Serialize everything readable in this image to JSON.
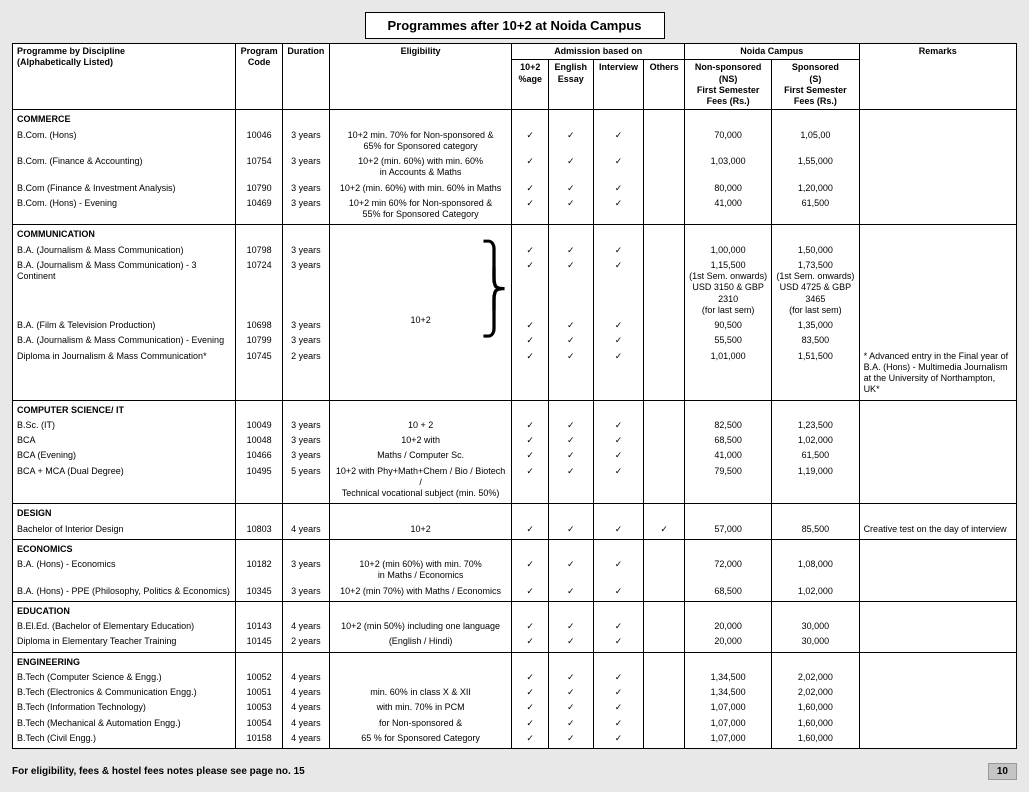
{
  "title": "Programmes after 10+2 at Noida Campus",
  "headers": {
    "prog": "Programme by Discipline\n(Alphabetically Listed)",
    "code": "Program\nCode",
    "dur": "Duration",
    "elig": "Eligibility",
    "adm": "Admission based on",
    "adm1": "10+2\n%age",
    "adm2": "English\nEssay",
    "adm3": "Interview",
    "adm4": "Others",
    "campus": "Noida Campus",
    "ns": "Non-sponsored\n(NS)\nFirst Semester\nFees (Rs.)",
    "s": "Sponsored\n(S)\nFirst Semester\nFees (Rs.)",
    "rem": "Remarks"
  },
  "tick": "✓",
  "sections": [
    {
      "name": "COMMERCE",
      "rows": [
        {
          "p": "B.Com. (Hons)",
          "c": "10046",
          "d": "3 years",
          "e": "10+2 min. 70% for Non-sponsored &\n65% for Sponsored category",
          "a": [
            1,
            1,
            1,
            0
          ],
          "ns": "70,000",
          "s": "1,05,00",
          "r": ""
        },
        {
          "p": "B.Com. (Finance & Accounting)",
          "c": "10754",
          "d": "3 years",
          "e": "10+2 (min. 60%) with min. 60%\nin Accounts & Maths",
          "a": [
            1,
            1,
            1,
            0
          ],
          "ns": "1,03,000",
          "s": "1,55,000",
          "r": ""
        },
        {
          "p": "B.Com (Finance & Investment Analysis)",
          "c": "10790",
          "d": "3 years",
          "e": "10+2 (min. 60%) with min. 60% in Maths",
          "a": [
            1,
            1,
            1,
            0
          ],
          "ns": "80,000",
          "s": "1,20,000",
          "r": ""
        },
        {
          "p": "B.Com. (Hons) - Evening",
          "c": "10469",
          "d": "3 years",
          "e": "10+2 min 60% for Non-sponsored &\n55% for Sponsored Category",
          "a": [
            1,
            1,
            1,
            0
          ],
          "ns": "41,000",
          "s": "61,500",
          "r": ""
        }
      ]
    },
    {
      "name": "COMMUNICATION",
      "bracedElig": "10+2",
      "rows": [
        {
          "p": "B.A. (Journalism & Mass Communication)",
          "c": "10798",
          "d": "3 years",
          "e": "",
          "a": [
            1,
            1,
            1,
            0
          ],
          "ns": "1,00,000",
          "s": "1,50,000",
          "r": ""
        },
        {
          "p": "B.A. (Journalism & Mass Communication) - 3 Continent",
          "c": "10724",
          "d": "3 years",
          "e": "",
          "a": [
            1,
            1,
            1,
            0
          ],
          "ns": "1,15,500\n(1st Sem. onwards)\nUSD 3150 & GBP 2310\n(for last sem)",
          "s": "1,73,500\n(1st Sem. onwards)\nUSD 4725 & GBP 3465\n(for last sem)",
          "r": ""
        },
        {
          "p": "B.A. (Film & Television Production)",
          "c": "10698",
          "d": "3 years",
          "e": "",
          "a": [
            1,
            1,
            1,
            0
          ],
          "ns": "90,500",
          "s": "1,35,000",
          "r": ""
        },
        {
          "p": "B.A. (Journalism & Mass Communication) - Evening",
          "c": "10799",
          "d": "3 years",
          "e": "",
          "a": [
            1,
            1,
            1,
            0
          ],
          "ns": "55,500",
          "s": "83,500",
          "r": ""
        },
        {
          "p": "Diploma in Journalism & Mass Communication*",
          "c": "10745",
          "d": "2 years",
          "e": "",
          "a": [
            1,
            1,
            1,
            0
          ],
          "ns": "1,01,000",
          "s": "1,51,500",
          "r": "* Advanced entry in the Final year of B.A. (Hons) - Multimedia Journalism at the University of Northampton, UK*"
        }
      ]
    },
    {
      "name": "COMPUTER SCIENCE/ IT",
      "rows": [
        {
          "p": "B.Sc. (IT)",
          "c": "10049",
          "d": "3 years",
          "e": "10 + 2",
          "a": [
            1,
            1,
            1,
            0
          ],
          "ns": "82,500",
          "s": "1,23,500",
          "r": ""
        },
        {
          "p": "BCA",
          "c": "10048",
          "d": "3 years",
          "e": "10+2 with",
          "a": [
            1,
            1,
            1,
            0
          ],
          "ns": "68,500",
          "s": "1,02,000",
          "r": ""
        },
        {
          "p": "BCA (Evening)",
          "c": "10466",
          "d": "3 years",
          "e": "Maths / Computer Sc.",
          "a": [
            1,
            1,
            1,
            0
          ],
          "ns": "41,000",
          "s": "61,500",
          "r": ""
        },
        {
          "p": "BCA + MCA (Dual Degree)",
          "c": "10495",
          "d": "5 years",
          "e": "10+2 with Phy+Math+Chem / Bio / Biotech /\nTechnical vocational subject (min. 50%)",
          "a": [
            1,
            1,
            1,
            0
          ],
          "ns": "79,500",
          "s": "1,19,000",
          "r": ""
        }
      ]
    },
    {
      "name": "DESIGN",
      "rows": [
        {
          "p": "Bachelor of Interior Design",
          "c": "10803",
          "d": "4 years",
          "e": "10+2",
          "a": [
            1,
            1,
            1,
            1
          ],
          "ns": "57,000",
          "s": "85,500",
          "r": "Creative test on the day of interview"
        }
      ]
    },
    {
      "name": "ECONOMICS",
      "rows": [
        {
          "p": "B.A. (Hons) - Economics",
          "c": "10182",
          "d": "3 years",
          "e": "10+2 (min 60%) with min. 70%\nin Maths / Economics",
          "a": [
            1,
            1,
            1,
            0
          ],
          "ns": "72,000",
          "s": "1,08,000",
          "r": ""
        },
        {
          "p": "B.A. (Hons) - PPE (Philosophy, Politics & Economics)",
          "c": "10345",
          "d": "3 years",
          "e": "10+2 (min 70%) with Maths / Economics",
          "a": [
            1,
            1,
            1,
            0
          ],
          "ns": "68,500",
          "s": "1,02,000",
          "r": ""
        }
      ]
    },
    {
      "name": "EDUCATION",
      "rows": [
        {
          "p": "B.El.Ed. (Bachelor of Elementary Education)",
          "c": "10143",
          "d": "4 years",
          "e": "10+2 (min 50%) including one language",
          "a": [
            1,
            1,
            1,
            0
          ],
          "ns": "20,000",
          "s": "30,000",
          "r": ""
        },
        {
          "p": "Diploma in Elementary Teacher Training",
          "c": "10145",
          "d": "2 years",
          "e": "(English / Hindi)",
          "a": [
            1,
            1,
            1,
            0
          ],
          "ns": "20,000",
          "s": "30,000",
          "r": ""
        }
      ]
    },
    {
      "name": "ENGINEERING",
      "rows": [
        {
          "p": "B.Tech (Computer Science & Engg.)",
          "c": "10052",
          "d": "4 years",
          "e": "",
          "a": [
            1,
            1,
            1,
            0
          ],
          "ns": "1,34,500",
          "s": "2,02,000",
          "r": ""
        },
        {
          "p": "B.Tech (Electronics & Communication Engg.)",
          "c": "10051",
          "d": "4 years",
          "e": "min. 60% in class X & XII",
          "a": [
            1,
            1,
            1,
            0
          ],
          "ns": "1,34,500",
          "s": "2,02,000",
          "r": ""
        },
        {
          "p": "B.Tech (Information Technology)",
          "c": "10053",
          "d": "4 years",
          "e": "with min. 70% in PCM",
          "a": [
            1,
            1,
            1,
            0
          ],
          "ns": "1,07,000",
          "s": "1,60,000",
          "r": ""
        },
        {
          "p": "B.Tech (Mechanical & Automation Engg.)",
          "c": "10054",
          "d": "4 years",
          "e": "for Non-sponsored &",
          "a": [
            1,
            1,
            1,
            0
          ],
          "ns": "1,07,000",
          "s": "1,60,000",
          "r": ""
        },
        {
          "p": "B.Tech (Civil Engg.)",
          "c": "10158",
          "d": "4 years",
          "e": "65 % for Sponsored Category",
          "a": [
            1,
            1,
            1,
            0
          ],
          "ns": "1,07,000",
          "s": "1,60,000",
          "r": ""
        }
      ]
    }
  ],
  "footer_note": "For eligibility, fees & hostel fees notes please see page no. 15",
  "page_no": "10",
  "col_widths": {
    "prog": "220px",
    "code": "46px",
    "dur": "46px",
    "elig": "180px",
    "a1": "36px",
    "a2": "44px",
    "a3": "50px",
    "a4": "40px",
    "ns": "86px",
    "s": "86px",
    "rem": "155px"
  }
}
